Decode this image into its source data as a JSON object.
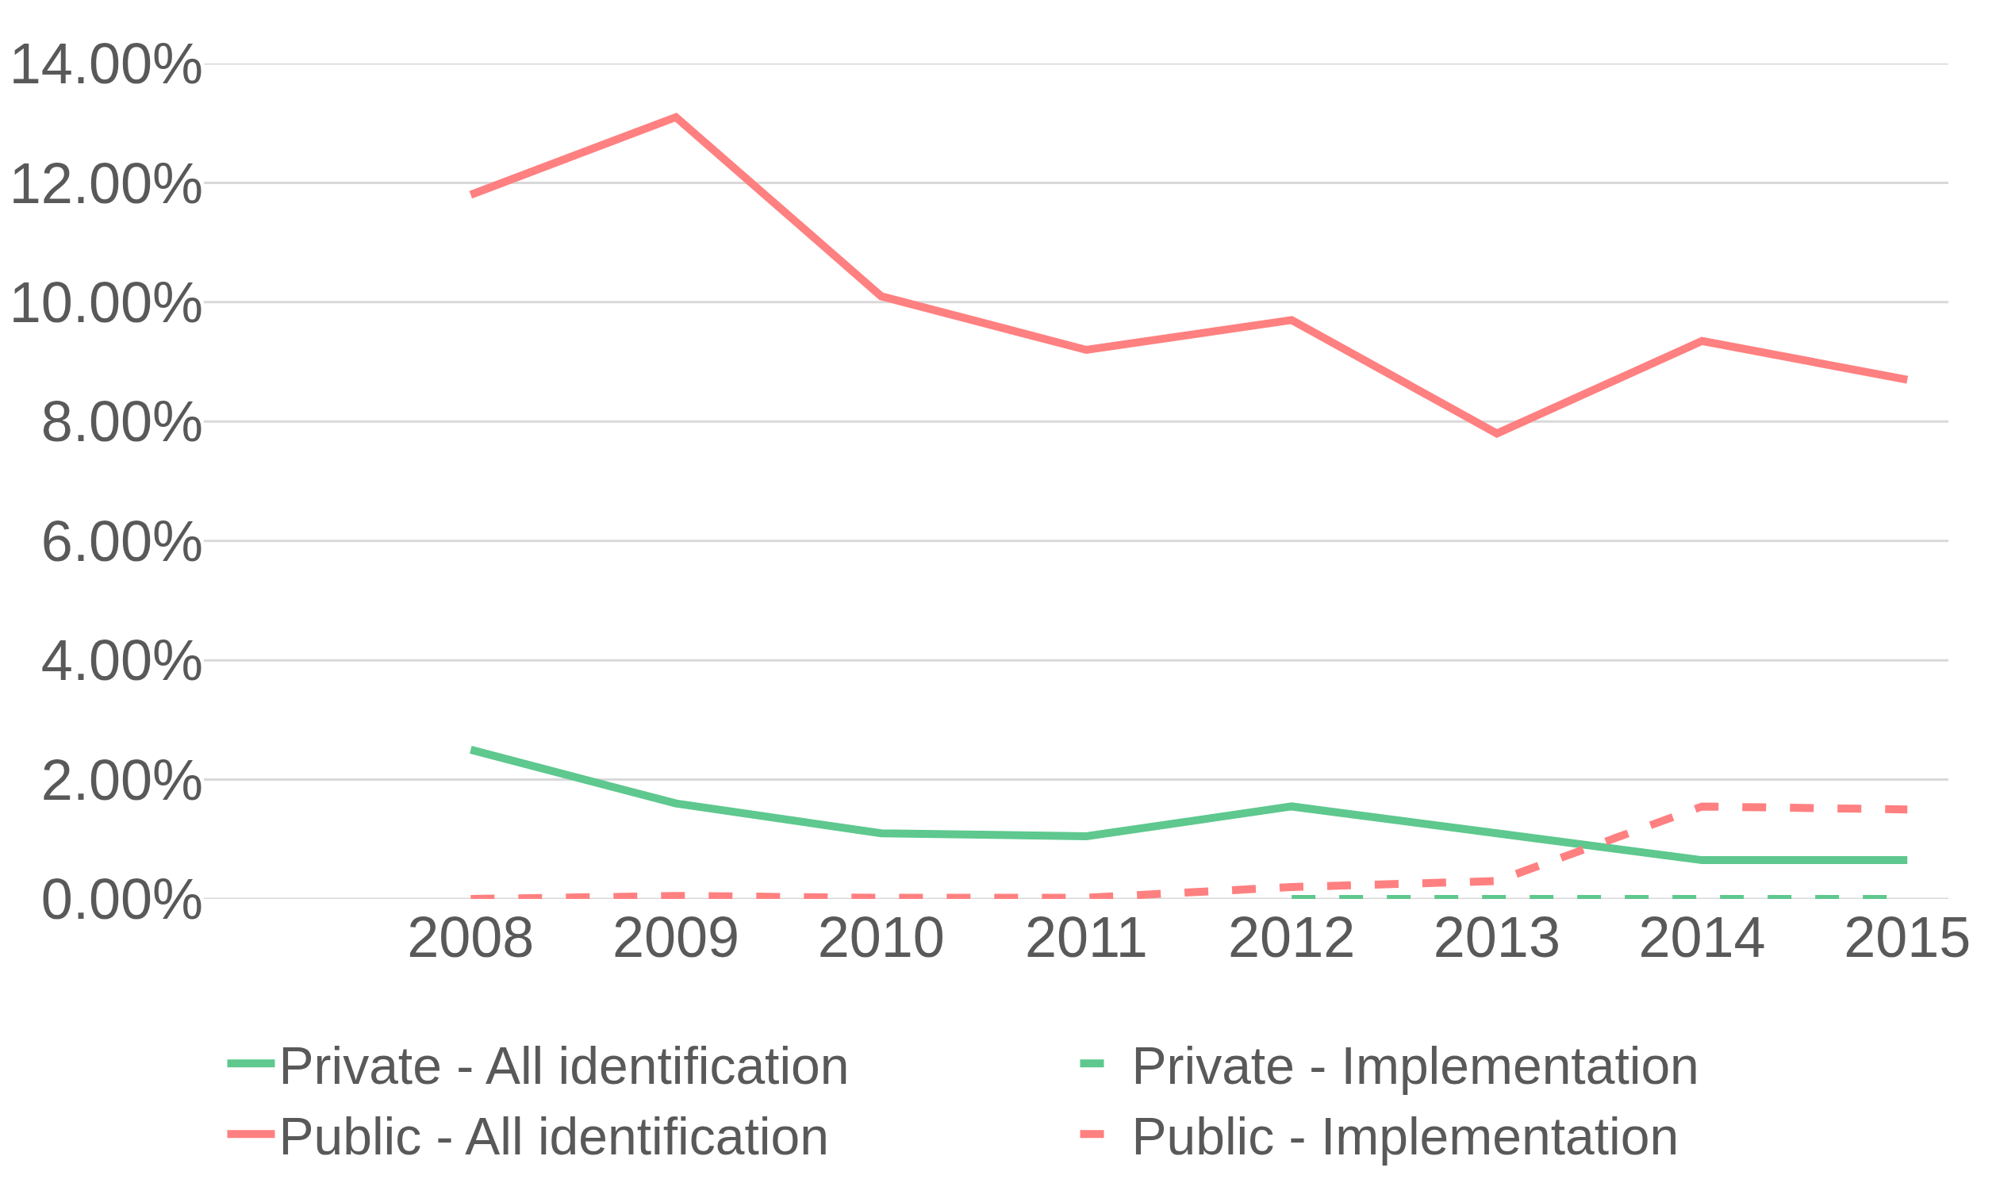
{
  "chart_data": {
    "type": "line",
    "categories": [
      "2008",
      "2009",
      "2010",
      "2011",
      "2012",
      "2013",
      "2014",
      "2015"
    ],
    "series": [
      {
        "name": "Private - All identification",
        "color": "#5ec88e",
        "values": [
          2.5,
          1.6,
          1.1,
          1.05,
          1.55,
          1.1,
          0.65,
          0.65
        ]
      },
      {
        "name": "Private - Implementation",
        "color": "#5ec88e",
        "line_style": "dashed",
        "values": [
          null,
          null,
          null,
          null,
          0,
          0,
          0,
          0
        ]
      },
      {
        "name": "Public - All identification",
        "color": "#ff8080",
        "values": [
          11.8,
          13.1,
          10.1,
          9.2,
          9.7,
          7.8,
          9.35,
          8.7
        ]
      },
      {
        "name": "Public - Implementation",
        "color": "#ff8080",
        "line_style": "dashed",
        "values": [
          0,
          0.05,
          0.02,
          0.02,
          0.2,
          0.3,
          1.55,
          1.5
        ]
      }
    ],
    "ylim": [
      0,
      14
    ],
    "yticks": [
      {
        "value": 0,
        "label": "0.00%"
      },
      {
        "value": 2,
        "label": "2.00%"
      },
      {
        "value": 4,
        "label": "4.00%"
      },
      {
        "value": 6,
        "label": "6.00%"
      },
      {
        "value": 8,
        "label": "8.00%"
      },
      {
        "value": 10,
        "label": "10.00%"
      },
      {
        "value": 12,
        "label": "12.00%"
      },
      {
        "value": 14,
        "label": "14.00%"
      }
    ],
    "grid": "y",
    "legend": "bottom",
    "marker": "none",
    "line_style": "solid"
  }
}
